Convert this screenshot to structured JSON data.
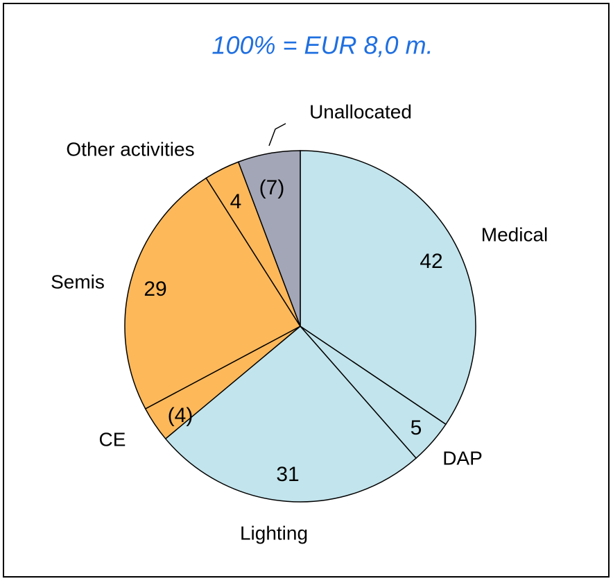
{
  "chart_data": {
    "type": "pie",
    "title": "100% = EUR 8,0 m.",
    "categories": [
      "Medical",
      "DAP",
      "Lighting",
      "CE",
      "Semis",
      "Other activities",
      "Unallocated"
    ],
    "values": [
      42,
      5,
      31,
      -4,
      29,
      4,
      -7
    ],
    "value_labels": [
      "42",
      "5",
      "31",
      "(4)",
      "29",
      "4",
      "(7)"
    ],
    "colors": [
      "#c2e4ec",
      "#c2e4ec",
      "#c2e4ec",
      "#fdb85a",
      "#fdb85a",
      "#fdb85a",
      "#a3a6b6"
    ]
  }
}
